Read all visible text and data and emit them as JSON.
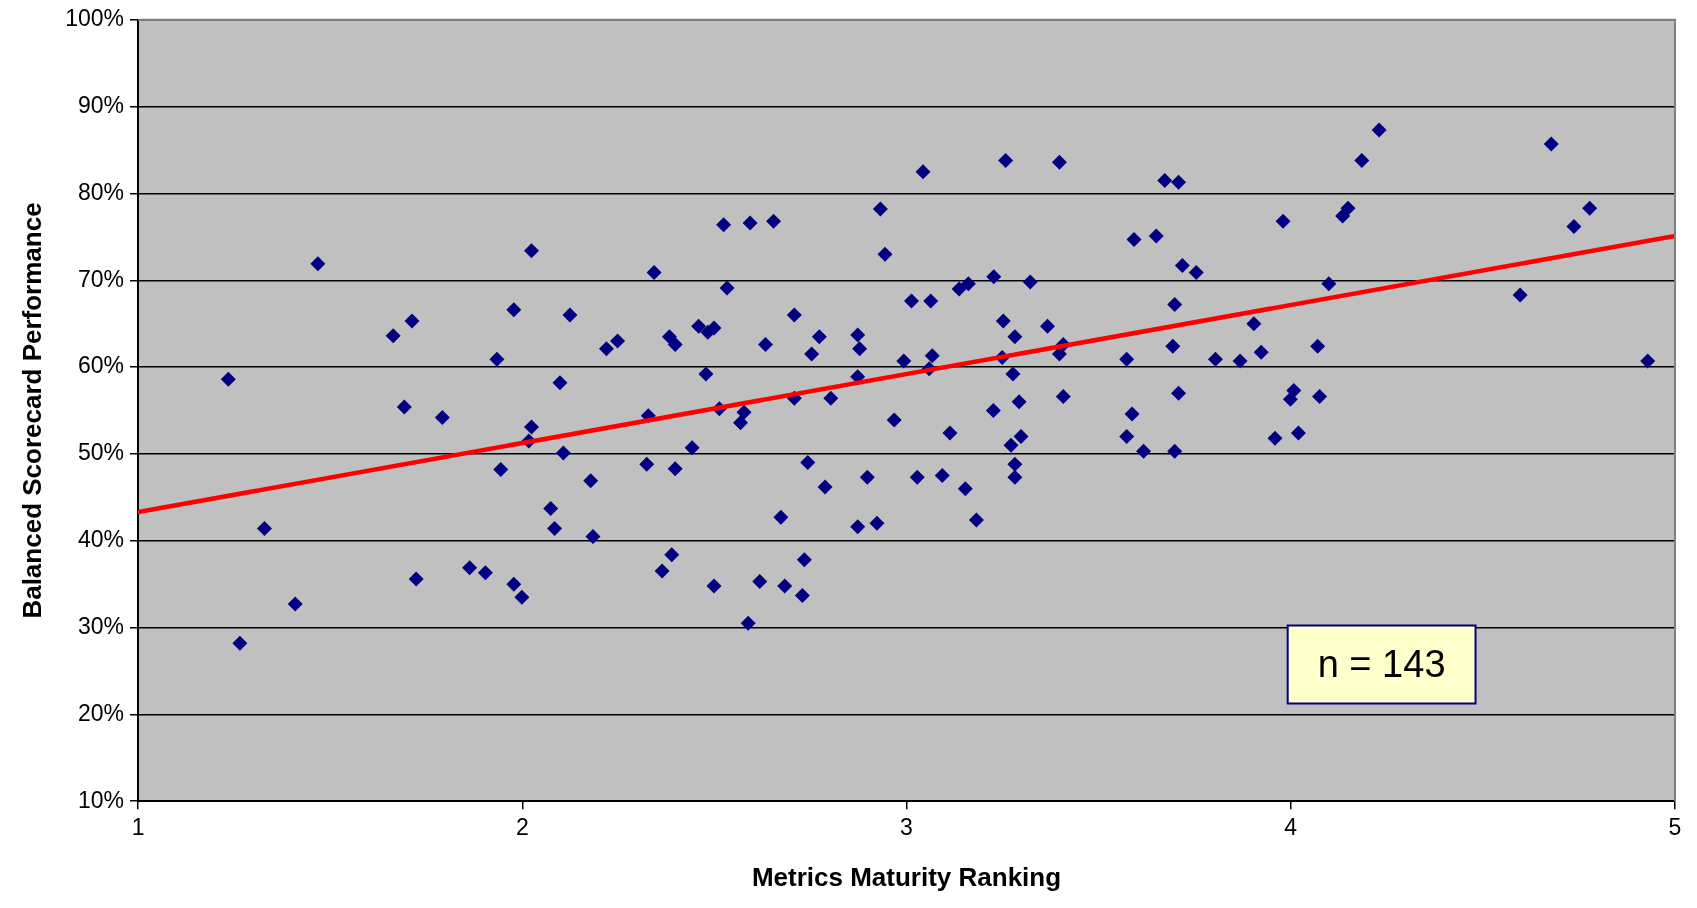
{
  "chart_data": {
    "type": "scatter",
    "xlabel": "Metrics Maturity Ranking",
    "ylabel": "Balanced Scorecard Performance",
    "xlim": [
      1,
      5
    ],
    "xticks": [
      1,
      2,
      3,
      4,
      5
    ],
    "ylim": [
      10,
      100
    ],
    "yticks": [
      {
        "value": 10,
        "label": "10%"
      },
      {
        "value": 20,
        "label": "20%"
      },
      {
        "value": 30,
        "label": "30%"
      },
      {
        "value": 40,
        "label": "40%"
      },
      {
        "value": 50,
        "label": "50%"
      },
      {
        "value": 60,
        "label": "60%"
      },
      {
        "value": 70,
        "label": "70%"
      },
      {
        "value": 80,
        "label": "80%"
      },
      {
        "value": 90,
        "label": "90%"
      },
      {
        "value": 100,
        "label": "100%"
      }
    ],
    "grid": "y",
    "marker": "diamond",
    "annotations": [
      "n = 143"
    ],
    "series": [
      {
        "type": "scatter",
        "color": "#000080",
        "x": [
          1.468,
          2.024,
          1.713,
          1.664,
          1.978,
          2.124,
          2.219,
          2.248,
          1.934,
          1.235,
          2.098,
          1.693,
          1.792,
          2.024,
          2.017,
          2.107,
          2.324,
          1.944,
          2.178,
          2.074,
          2.084,
          2.184,
          1.329,
          1.724,
          1.863,
          1.904,
          1.978,
          1.999,
          1.409,
          1.265,
          2.343,
          2.524,
          2.593,
          2.654,
          3.043,
          3.258,
          3.398,
          2.932,
          2.944,
          3.592,
          2.533,
          3.227,
          3.137,
          3.161,
          3.322,
          3.013,
          3.063,
          2.708,
          3.252,
          3.367,
          2.459,
          2.483,
          2.499,
          2.383,
          2.398,
          3.282,
          2.633,
          2.773,
          2.753,
          2.873,
          2.878,
          3.398,
          3.408,
          3.249,
          3.067,
          3.059,
          2.993,
          3.573,
          3.277,
          2.478,
          2.873,
          2.708,
          2.803,
          3.293,
          3.408,
          2.513,
          2.577,
          3.226,
          3.587,
          2.328,
          2.568,
          2.968,
          3.113,
          3.298,
          3.272,
          3.573,
          3.617,
          2.442,
          2.398,
          2.743,
          3.282,
          3.282,
          2.788,
          2.898,
          3.028,
          3.093,
          3.153,
          2.673,
          2.873,
          2.923,
          3.182,
          2.389,
          2.364,
          2.499,
          2.618,
          2.683,
          2.734,
          2.729,
          2.588,
          4.23,
          4.678,
          4.185,
          3.672,
          3.708,
          4.149,
          4.135,
          4.778,
          4.737,
          3.98,
          3.65,
          3.718,
          3.754,
          4.099,
          4.597,
          3.698,
          3.904,
          3.693,
          3.923,
          4.07,
          3.804,
          3.868,
          4.929,
          3.708,
          4.008,
          3.999,
          4.075,
          3.698,
          3.959,
          4.02
        ],
        "values": [
          71.9,
          73.4,
          65.3,
          63.6,
          66.6,
          66.0,
          62.1,
          63.0,
          60.9,
          58.6,
          58.2,
          55.4,
          54.2,
          53.1,
          51.5,
          50.1,
          48.8,
          48.2,
          46.9,
          43.7,
          41.4,
          40.5,
          41.4,
          35.6,
          36.9,
          36.3,
          35.0,
          33.5,
          32.7,
          28.2,
          70.9,
          76.4,
          76.6,
          76.8,
          82.5,
          83.8,
          83.6,
          78.2,
          73.0,
          74.7,
          69.1,
          70.4,
          69.0,
          69.6,
          69.8,
          67.6,
          67.6,
          66.0,
          65.3,
          64.7,
          64.7,
          64.0,
          64.5,
          63.5,
          62.6,
          63.5,
          62.6,
          63.5,
          61.5,
          63.7,
          62.1,
          61.5,
          62.6,
          61.1,
          61.3,
          59.8,
          60.7,
          60.9,
          59.2,
          59.2,
          58.9,
          56.4,
          56.4,
          56.0,
          56.6,
          55.2,
          54.8,
          55.0,
          54.6,
          54.4,
          53.6,
          53.9,
          52.4,
          52.0,
          51.0,
          52.0,
          50.3,
          50.7,
          48.3,
          49.0,
          48.8,
          47.3,
          46.2,
          47.3,
          47.3,
          47.5,
          46.0,
          42.7,
          41.6,
          42.0,
          42.4,
          38.4,
          36.5,
          34.8,
          35.3,
          34.8,
          37.8,
          33.7,
          30.5,
          87.3,
          85.7,
          83.8,
          81.5,
          81.3,
          78.3,
          77.4,
          78.3,
          76.2,
          76.8,
          75.1,
          71.7,
          70.9,
          69.6,
          68.3,
          67.2,
          65.0,
          62.4,
          61.7,
          62.4,
          60.9,
          60.7,
          60.7,
          57.0,
          57.3,
          56.3,
          56.6,
          50.3,
          51.8,
          52.4
        ]
      },
      {
        "type": "line",
        "color": "#ff0000",
        "marker": "none",
        "x": [
          1,
          5
        ],
        "values": [
          43.3,
          75.1
        ]
      }
    ]
  }
}
